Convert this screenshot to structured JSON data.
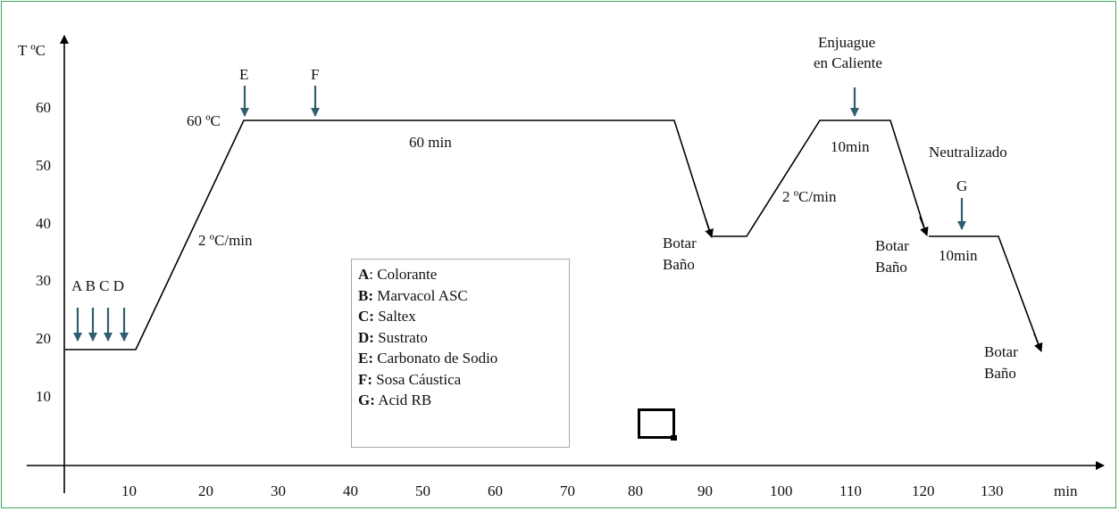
{
  "axes": {
    "y_title": "T ºC",
    "x_title": "min",
    "x_ticks": [
      "10",
      "20",
      "30",
      "40",
      "50",
      "60",
      "70",
      "80",
      "90",
      "100",
      "110",
      "120",
      "130"
    ],
    "y_ticks": [
      "10",
      "20",
      "30",
      "40",
      "50",
      "60"
    ]
  },
  "profile_labels": {
    "temp_peak": "60 ºC",
    "ramp1_rate": "2 ºC/min",
    "hold_time": "60 min",
    "drain1": [
      "Botar",
      "Baño"
    ],
    "ramp2_rate": "2 ºC/min",
    "hot_rinse": [
      "Enjuague",
      "en Caliente"
    ],
    "rinse_time": "10min",
    "neutralized": "Neutralizado",
    "drain2": [
      "Botar",
      "Baño"
    ],
    "neutral_time": "10min",
    "drain3": [
      "Botar",
      "Baño"
    ]
  },
  "additions": {
    "abcd": "A B C D",
    "e": "E",
    "f": "F",
    "g": "G"
  },
  "legend": [
    {
      "key": "A",
      "sep": ": ",
      "text": "Colorante"
    },
    {
      "key": "B:",
      "sep": " ",
      "text": "Marvacol ASC"
    },
    {
      "key": "C:",
      "sep": " ",
      "text": "Saltex"
    },
    {
      "key": "D:",
      "sep": " ",
      "text": "Sustrato"
    },
    {
      "key": "E:",
      "sep": " ",
      "text": "Carbonato de Sodio"
    },
    {
      "key": "F:",
      "sep": " ",
      "text": "Sosa Cáustica"
    },
    {
      "key": "G:",
      "sep": " ",
      "text": "Acid RB"
    }
  ],
  "colors": {
    "arrow": "#2f5f6e",
    "frame": "#3fa65a",
    "line": "#000000"
  }
}
